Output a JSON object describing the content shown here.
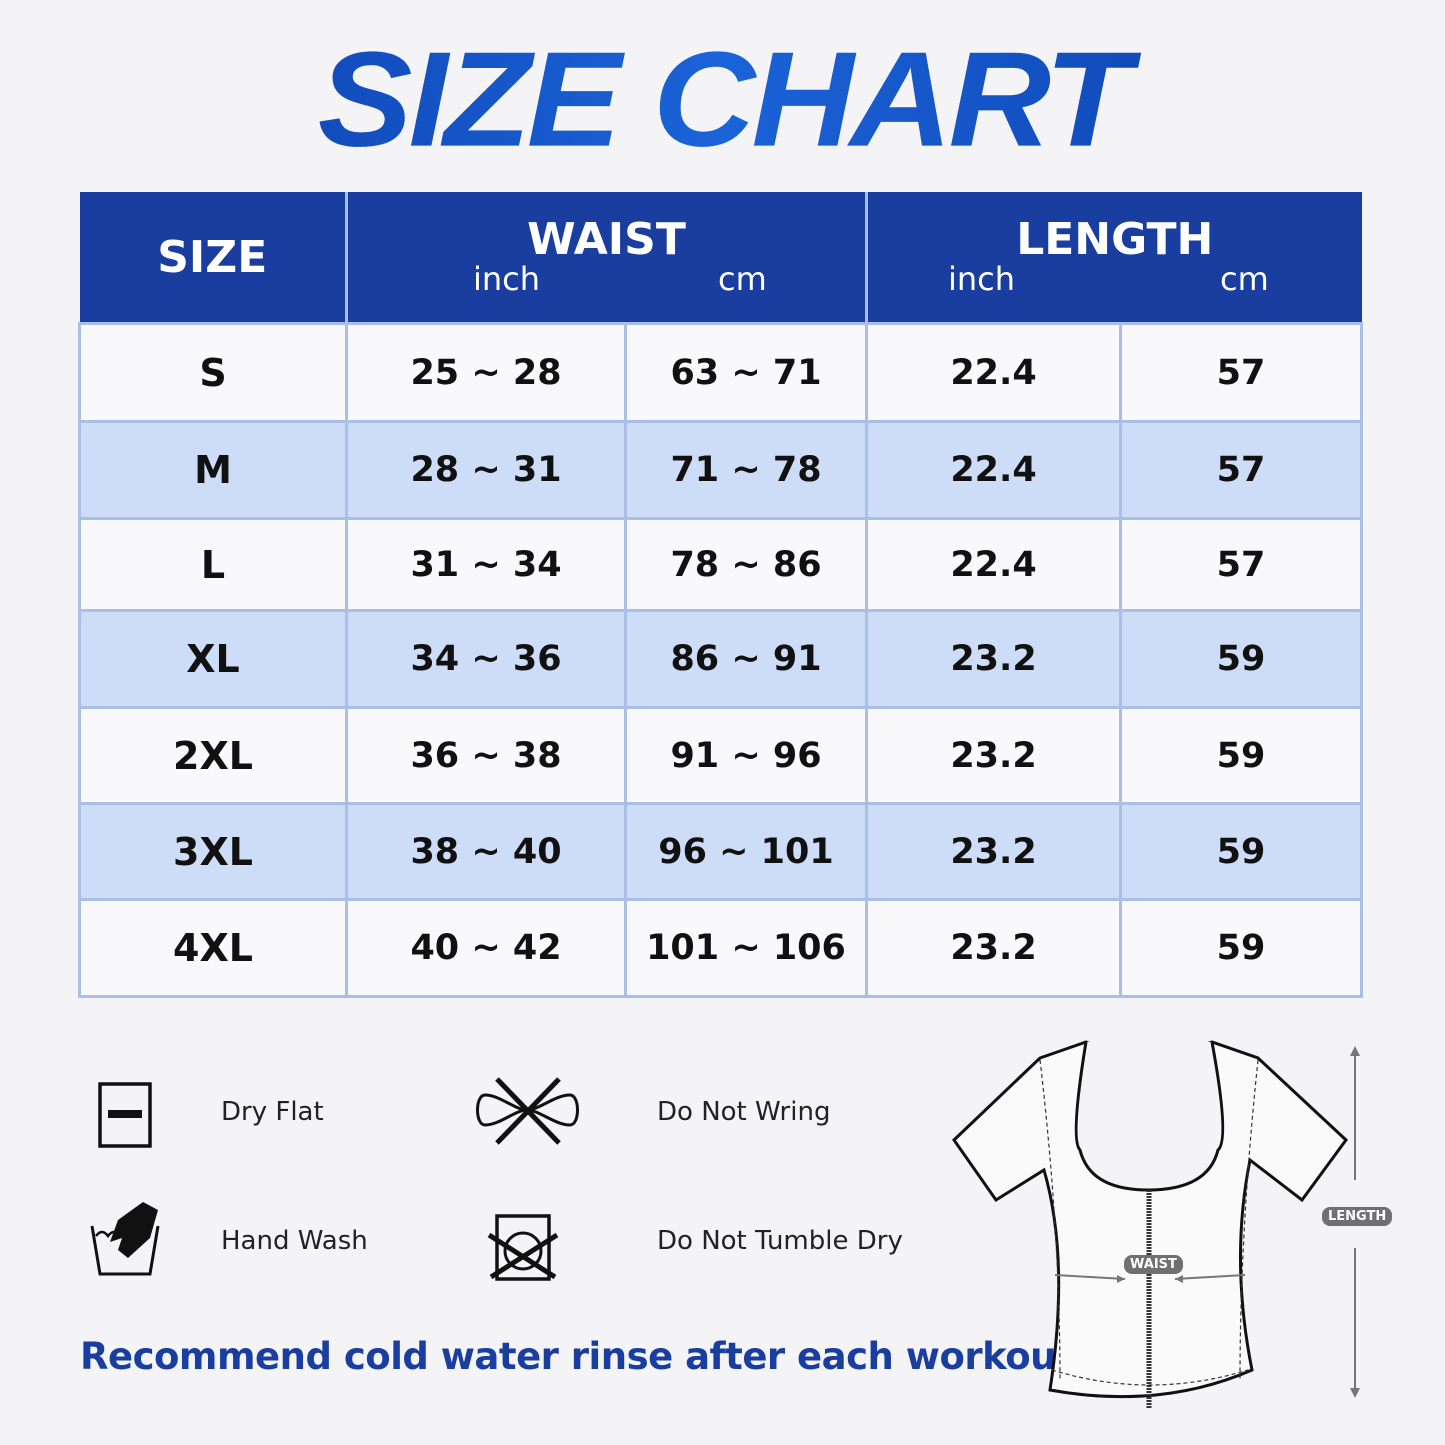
{
  "title": "SIZE CHART",
  "table": {
    "headers": {
      "size": "SIZE",
      "waist": "WAIST",
      "length": "LENGTH",
      "waist_inch": "inch",
      "waist_cm": "cm",
      "length_inch": "inch",
      "length_cm": "cm"
    },
    "rows": [
      {
        "size": "S",
        "waist_inch": "25 ~ 28",
        "waist_cm": "63 ~ 71",
        "length_inch": "22.4",
        "length_cm": "57"
      },
      {
        "size": "M",
        "waist_inch": "28 ~ 31",
        "waist_cm": "71 ~ 78",
        "length_inch": "22.4",
        "length_cm": "57"
      },
      {
        "size": "L",
        "waist_inch": "31 ~ 34",
        "waist_cm": "78 ~ 86",
        "length_inch": "22.4",
        "length_cm": "57"
      },
      {
        "size": "XL",
        "waist_inch": "34 ~ 36",
        "waist_cm": "86 ~ 91",
        "length_inch": "23.2",
        "length_cm": "59"
      },
      {
        "size": "2XL",
        "waist_inch": "36 ~ 38",
        "waist_cm": "91 ~ 96",
        "length_inch": "23.2",
        "length_cm": "59"
      },
      {
        "size": "3XL",
        "waist_inch": "38 ~ 40",
        "waist_cm": "96 ~ 101",
        "length_inch": "23.2",
        "length_cm": "59"
      },
      {
        "size": "4XL",
        "waist_inch": "40 ~ 42",
        "waist_cm": "101 ~ 106",
        "length_inch": "23.2",
        "length_cm": "59"
      }
    ]
  },
  "care": [
    {
      "label": "Dry Flat",
      "icon": "dry-flat-icon"
    },
    {
      "label": "Do Not Wring",
      "icon": "do-not-wring-icon"
    },
    {
      "label": "Hand Wash",
      "icon": "hand-wash-icon"
    },
    {
      "label": "Do Not Tumble Dry",
      "icon": "do-not-tumble-dry-icon"
    }
  ],
  "note": "Recommend cold water rinse after each workout.",
  "diagram": {
    "waist_tag": "WAIST",
    "length_tag": "LENGTH"
  },
  "colors": {
    "header": "#1a3ea0",
    "stripe": "#cddcf7",
    "title": "#1245b5"
  }
}
